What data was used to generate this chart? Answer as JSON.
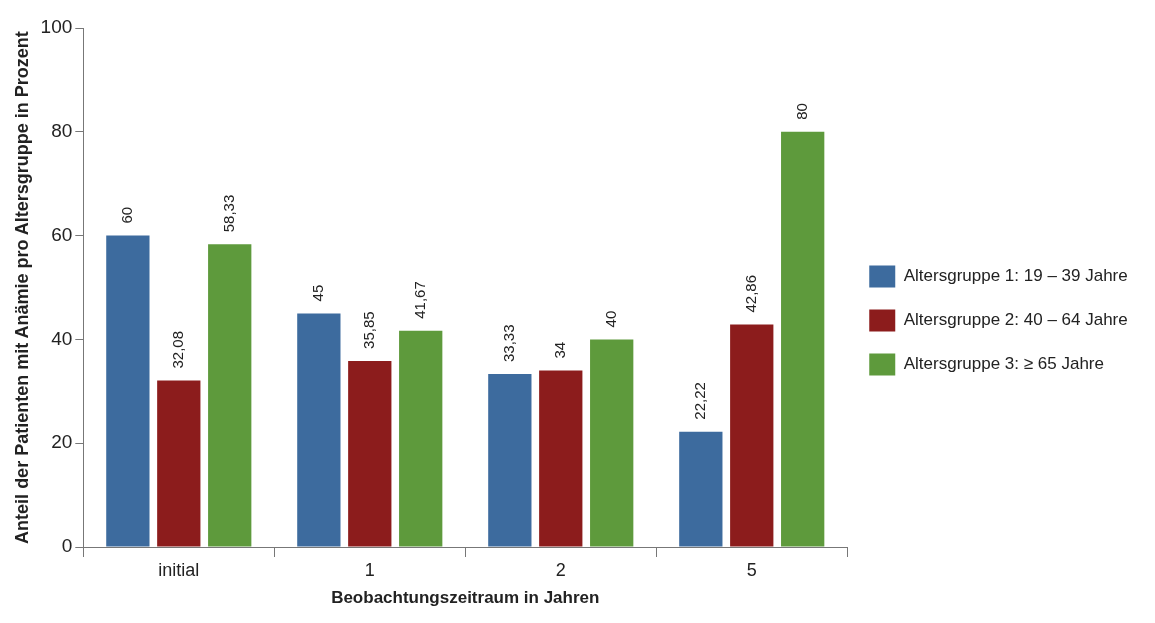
{
  "chart_data": {
    "type": "bar",
    "xlabel": "Beobachtungszeitraum in Jahren",
    "ylabel": "Anteil der Patienten mit Anämie pro Altersgruppe in Prozent",
    "categories": [
      "initial",
      "1",
      "2",
      "5"
    ],
    "series": [
      {
        "name": "Altersgruppe 1: 19 – 39 Jahre",
        "color": "#3d6b9e",
        "values": [
          60,
          45,
          33.33,
          22.22
        ],
        "value_labels": [
          "60",
          "45",
          "33,33",
          "22,22"
        ]
      },
      {
        "name": "Altersgruppe 2: 40 – 64 Jahre",
        "color": "#8c1c1c",
        "values": [
          32.08,
          35.85,
          34,
          42.86
        ],
        "value_labels": [
          "32,08",
          "35,85",
          "34",
          "42,86"
        ]
      },
      {
        "name": "Altersgruppe 3: ≥ 65 Jahre",
        "color": "#5e9a3c",
        "values": [
          58.33,
          41.67,
          40,
          80
        ],
        "value_labels": [
          "58,33",
          "41,67",
          "40",
          "80"
        ]
      }
    ],
    "ylim": [
      0,
      100
    ],
    "yticks": [
      0,
      20,
      40,
      60,
      80,
      100
    ],
    "grid": false,
    "legend": "right"
  }
}
